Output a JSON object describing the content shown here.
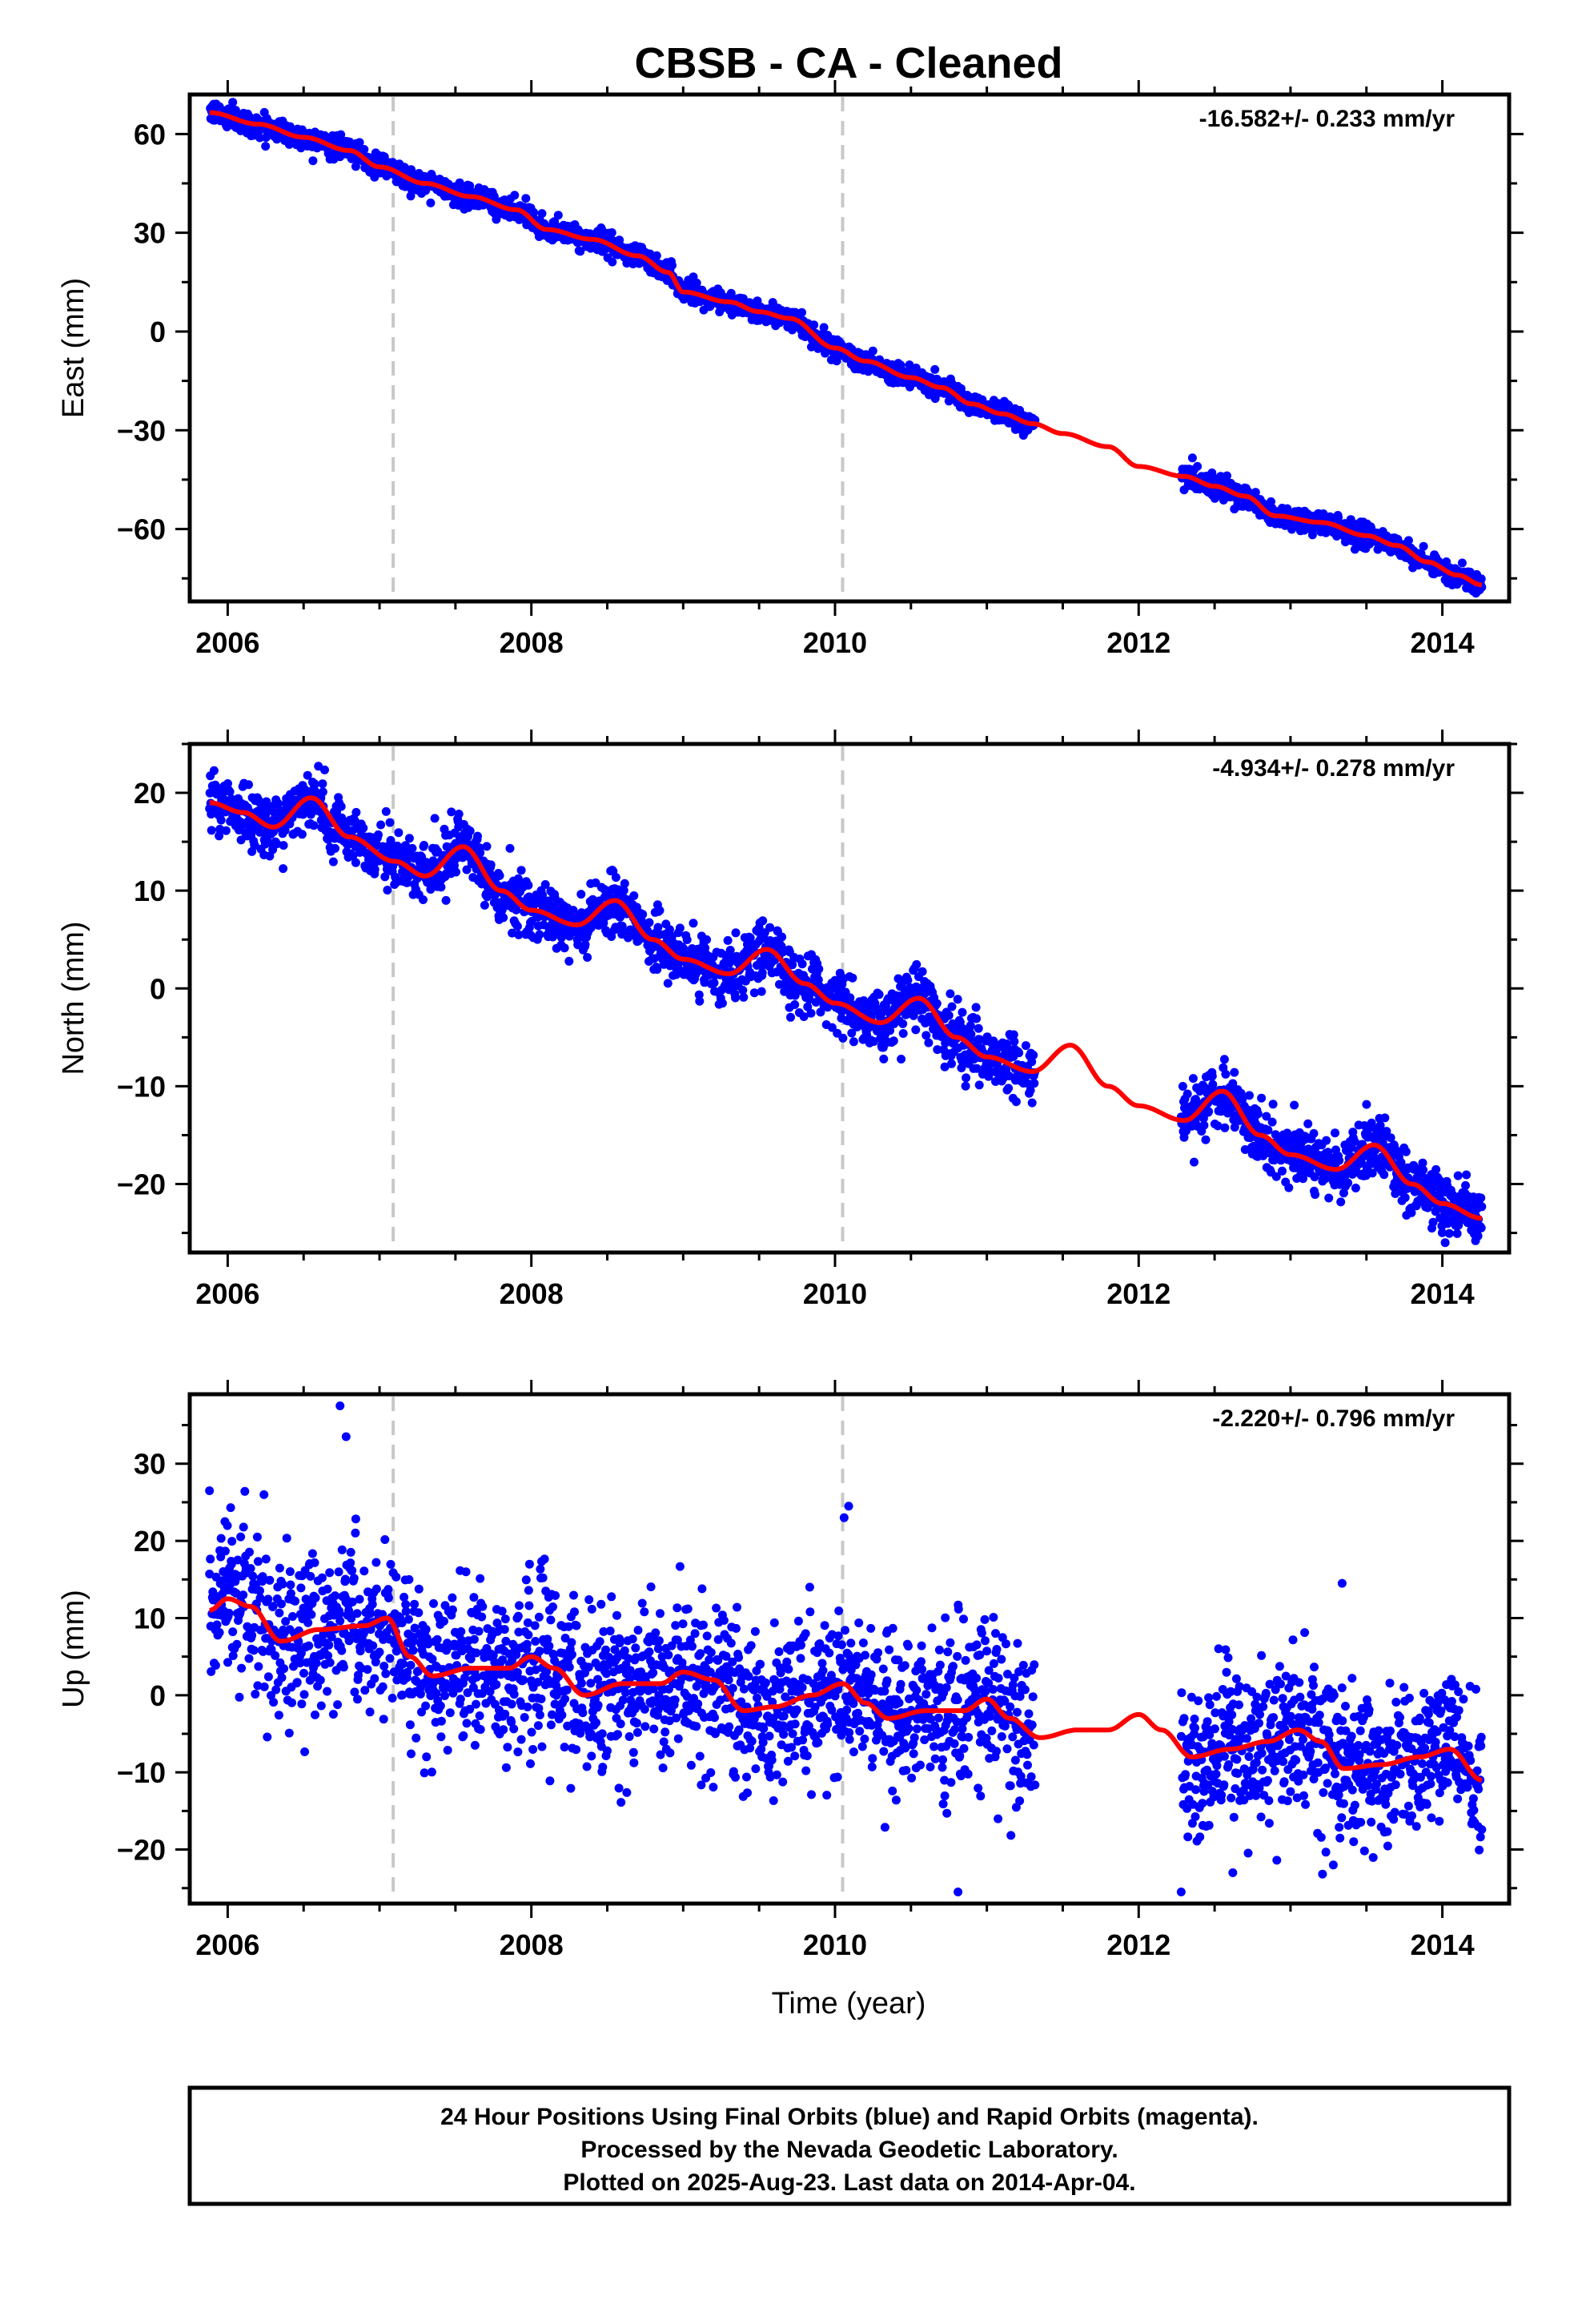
{
  "title": "CBSB  - CA - Cleaned",
  "xlabel": "Time (year)",
  "footer": {
    "line1": "24 Hour Positions Using Final Orbits (blue) and Rapid Orbits (magenta).",
    "line2": "Processed by the Nevada Geodetic Laboratory.",
    "line3": "Plotted on 2025-Aug-23. Last data on 2014-Apr-04."
  },
  "colors": {
    "points": "#0000ff",
    "fit": "#ff0000",
    "breaks": "#c8c8c8",
    "frame": "#000000"
  },
  "chart_data": [
    {
      "type": "scatter",
      "ylabel": "East (mm)",
      "rate": "-16.582+/- 0.233 mm/yr",
      "xlim": [
        2005.75,
        2014.44
      ],
      "ylim": [
        -82,
        72
      ],
      "xticks": [
        2006,
        2008,
        2010,
        2012,
        2014
      ],
      "yticks": [
        -60,
        -30,
        0,
        30,
        60
      ],
      "breaks": [
        2007.09,
        2010.05
      ],
      "data_segments": [
        [
          2005.88,
          2011.32
        ],
        [
          2012.28,
          2014.26
        ]
      ],
      "scatter_sigma": 1.6,
      "fit": [
        [
          2005.88,
          66.5
        ],
        [
          2006.2,
          63
        ],
        [
          2006.5,
          59
        ],
        [
          2006.8,
          55
        ],
        [
          2007.0,
          50
        ],
        [
          2007.3,
          45
        ],
        [
          2007.6,
          41
        ],
        [
          2007.9,
          37
        ],
        [
          2008.1,
          31
        ],
        [
          2008.4,
          28
        ],
        [
          2008.7,
          23
        ],
        [
          2008.9,
          18
        ],
        [
          2009.0,
          12
        ],
        [
          2009.3,
          9
        ],
        [
          2009.5,
          6
        ],
        [
          2009.7,
          4
        ],
        [
          2010.0,
          -5
        ],
        [
          2010.2,
          -9
        ],
        [
          2010.5,
          -14
        ],
        [
          2010.7,
          -17
        ],
        [
          2010.9,
          -22
        ],
        [
          2011.1,
          -25
        ],
        [
          2011.3,
          -28
        ],
        [
          2011.5,
          -31
        ],
        [
          2011.8,
          -35
        ],
        [
          2012.0,
          -41
        ],
        [
          2012.3,
          -44
        ],
        [
          2012.5,
          -47
        ],
        [
          2012.7,
          -50
        ],
        [
          2012.9,
          -56
        ],
        [
          2013.2,
          -58
        ],
        [
          2013.5,
          -62
        ],
        [
          2013.7,
          -65
        ],
        [
          2013.9,
          -70
        ],
        [
          2014.1,
          -74
        ],
        [
          2014.26,
          -77
        ]
      ]
    },
    {
      "type": "scatter",
      "ylabel": "North (mm)",
      "rate": "-4.934+/- 0.278 mm/yr",
      "xlim": [
        2005.75,
        2014.44
      ],
      "ylim": [
        -27,
        25
      ],
      "xticks": [
        2006,
        2008,
        2010,
        2012,
        2014
      ],
      "yticks": [
        -20,
        -10,
        0,
        10,
        20
      ],
      "breaks": [
        2007.09,
        2010.05
      ],
      "data_segments": [
        [
          2005.88,
          2011.32
        ],
        [
          2012.28,
          2014.26
        ]
      ],
      "scatter_sigma": 1.5,
      "fit": [
        [
          2005.88,
          19
        ],
        [
          2006.1,
          18
        ],
        [
          2006.3,
          16.5
        ],
        [
          2006.55,
          19.5
        ],
        [
          2006.8,
          15.5
        ],
        [
          2007.1,
          13
        ],
        [
          2007.3,
          11.5
        ],
        [
          2007.55,
          14.5
        ],
        [
          2007.8,
          10
        ],
        [
          2008.0,
          8
        ],
        [
          2008.3,
          6.5
        ],
        [
          2008.55,
          9
        ],
        [
          2008.8,
          5
        ],
        [
          2009.0,
          3
        ],
        [
          2009.3,
          1.5
        ],
        [
          2009.55,
          4
        ],
        [
          2009.8,
          0.5
        ],
        [
          2010.0,
          -1.5
        ],
        [
          2010.3,
          -3.5
        ],
        [
          2010.55,
          -1
        ],
        [
          2010.8,
          -5
        ],
        [
          2011.0,
          -7
        ],
        [
          2011.3,
          -8.5
        ],
        [
          2011.55,
          -5.8
        ],
        [
          2011.8,
          -10
        ],
        [
          2012.0,
          -12
        ],
        [
          2012.3,
          -13.5
        ],
        [
          2012.55,
          -10.5
        ],
        [
          2012.8,
          -15
        ],
        [
          2013.0,
          -17
        ],
        [
          2013.3,
          -18.5
        ],
        [
          2013.55,
          -16
        ],
        [
          2013.8,
          -20
        ],
        [
          2014.0,
          -22
        ],
        [
          2014.26,
          -23.5
        ]
      ]
    },
    {
      "type": "scatter",
      "ylabel": "Up (mm)",
      "rate": "-2.220+/- 0.796 mm/yr",
      "xlim": [
        2005.75,
        2014.44
      ],
      "ylim": [
        -27,
        39
      ],
      "xticks": [
        2006,
        2008,
        2010,
        2012,
        2014
      ],
      "yticks": [
        -20,
        -10,
        0,
        10,
        20,
        30
      ],
      "breaks": [
        2007.09,
        2010.05
      ],
      "data_segments": [
        [
          2005.88,
          2011.32
        ],
        [
          2012.28,
          2014.26
        ]
      ],
      "scatter_sigma": 5.0,
      "fit": [
        [
          2005.88,
          11
        ],
        [
          2006.0,
          12.5
        ],
        [
          2006.15,
          11.5
        ],
        [
          2006.35,
          7
        ],
        [
          2006.6,
          8.5
        ],
        [
          2006.9,
          9
        ],
        [
          2007.05,
          10
        ],
        [
          2007.2,
          5
        ],
        [
          2007.35,
          2.5
        ],
        [
          2007.6,
          3.5
        ],
        [
          2007.85,
          3.5
        ],
        [
          2008.0,
          5
        ],
        [
          2008.15,
          3.5
        ],
        [
          2008.35,
          0
        ],
        [
          2008.6,
          1.5
        ],
        [
          2008.85,
          1.5
        ],
        [
          2009.0,
          3
        ],
        [
          2009.2,
          2
        ],
        [
          2009.4,
          -2
        ],
        [
          2009.6,
          -1.5
        ],
        [
          2009.85,
          0
        ],
        [
          2010.05,
          1.5
        ],
        [
          2010.2,
          -1
        ],
        [
          2010.35,
          -3
        ],
        [
          2010.6,
          -2
        ],
        [
          2010.85,
          -2
        ],
        [
          2011.0,
          -0.5
        ],
        [
          2011.15,
          -3
        ],
        [
          2011.35,
          -5.5
        ],
        [
          2011.6,
          -4.5
        ],
        [
          2011.8,
          -4.5
        ],
        [
          2012.0,
          -2.5
        ],
        [
          2012.15,
          -4.5
        ],
        [
          2012.35,
          -8
        ],
        [
          2012.6,
          -7
        ],
        [
          2012.85,
          -6
        ],
        [
          2013.05,
          -4.5
        ],
        [
          2013.2,
          -6
        ],
        [
          2013.35,
          -9.5
        ],
        [
          2013.6,
          -9
        ],
        [
          2013.85,
          -8
        ],
        [
          2014.05,
          -7
        ],
        [
          2014.26,
          -11
        ]
      ],
      "outliers": [
        [
          2005.88,
          26.5
        ],
        [
          2006.74,
          37.5
        ],
        [
          2006.78,
          33.5
        ],
        [
          2010.09,
          24.5
        ],
        [
          2010.06,
          23
        ],
        [
          2012.28,
          -25.5
        ],
        [
          2013.34,
          14.5
        ],
        [
          2010.81,
          -25.5
        ],
        [
          2012.62,
          -23
        ]
      ]
    }
  ]
}
